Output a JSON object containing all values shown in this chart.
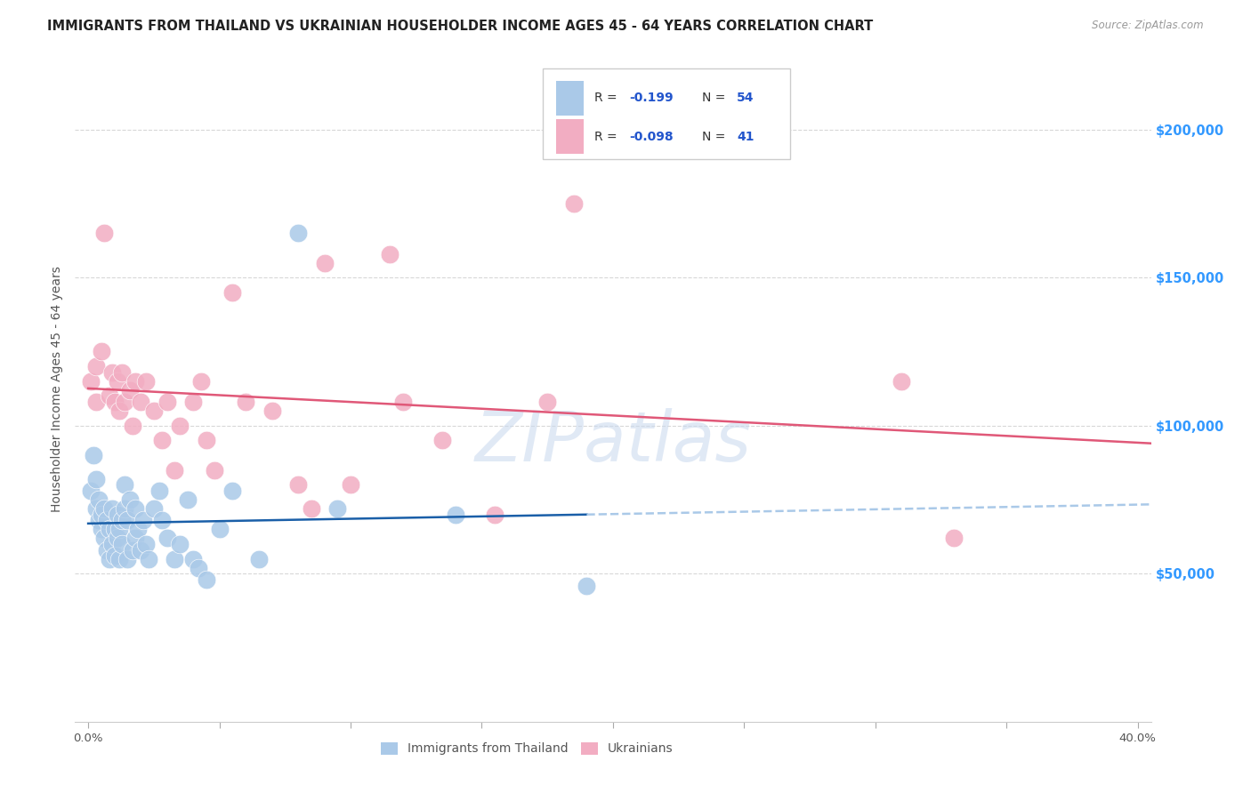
{
  "title": "IMMIGRANTS FROM THAILAND VS UKRAINIAN HOUSEHOLDER INCOME AGES 45 - 64 YEARS CORRELATION CHART",
  "source": "Source: ZipAtlas.com",
  "ylabel": "Householder Income Ages 45 - 64 years",
  "xlabel_ticks": [
    "0.0%",
    "",
    "",
    "",
    "",
    "",
    "",
    "",
    "40.0%"
  ],
  "xlabel_tick_vals": [
    0.0,
    0.05,
    0.1,
    0.15,
    0.2,
    0.25,
    0.3,
    0.35,
    0.4
  ],
  "ytick_labels": [
    "$50,000",
    "$100,000",
    "$150,000",
    "$200,000"
  ],
  "ytick_vals": [
    50000,
    100000,
    150000,
    200000
  ],
  "xlim": [
    -0.005,
    0.405
  ],
  "ylim": [
    0,
    225000
  ],
  "legend_label_blue": "Immigrants from Thailand",
  "legend_label_pink": "Ukrainians",
  "r_blue": "-0.199",
  "n_blue": "54",
  "r_pink": "-0.098",
  "n_pink": "41",
  "blue_color": "#aac9e8",
  "pink_color": "#f2adc2",
  "blue_line_color": "#1a5fa8",
  "pink_line_color": "#e05878",
  "watermark": "ZIPatlas",
  "thailand_x": [
    0.001,
    0.002,
    0.003,
    0.003,
    0.004,
    0.004,
    0.005,
    0.005,
    0.006,
    0.006,
    0.007,
    0.007,
    0.008,
    0.008,
    0.009,
    0.009,
    0.01,
    0.01,
    0.011,
    0.011,
    0.012,
    0.012,
    0.013,
    0.013,
    0.014,
    0.014,
    0.015,
    0.015,
    0.016,
    0.017,
    0.018,
    0.018,
    0.019,
    0.02,
    0.021,
    0.022,
    0.023,
    0.025,
    0.027,
    0.028,
    0.03,
    0.033,
    0.035,
    0.038,
    0.04,
    0.042,
    0.045,
    0.05,
    0.055,
    0.065,
    0.08,
    0.095,
    0.14,
    0.19
  ],
  "thailand_y": [
    78000,
    90000,
    72000,
    82000,
    68000,
    75000,
    65000,
    70000,
    62000,
    72000,
    58000,
    68000,
    55000,
    65000,
    60000,
    72000,
    56000,
    65000,
    62000,
    70000,
    55000,
    65000,
    60000,
    68000,
    72000,
    80000,
    55000,
    68000,
    75000,
    58000,
    62000,
    72000,
    65000,
    58000,
    68000,
    60000,
    55000,
    72000,
    78000,
    68000,
    62000,
    55000,
    60000,
    75000,
    55000,
    52000,
    48000,
    65000,
    78000,
    55000,
    165000,
    72000,
    70000,
    46000
  ],
  "ukraine_x": [
    0.001,
    0.003,
    0.003,
    0.005,
    0.006,
    0.008,
    0.009,
    0.01,
    0.011,
    0.012,
    0.013,
    0.014,
    0.016,
    0.017,
    0.018,
    0.02,
    0.022,
    0.025,
    0.028,
    0.03,
    0.033,
    0.035,
    0.04,
    0.043,
    0.045,
    0.048,
    0.055,
    0.06,
    0.07,
    0.08,
    0.085,
    0.09,
    0.1,
    0.115,
    0.12,
    0.135,
    0.155,
    0.175,
    0.185,
    0.31,
    0.33
  ],
  "ukraine_y": [
    115000,
    120000,
    108000,
    125000,
    165000,
    110000,
    118000,
    108000,
    115000,
    105000,
    118000,
    108000,
    112000,
    100000,
    115000,
    108000,
    115000,
    105000,
    95000,
    108000,
    85000,
    100000,
    108000,
    115000,
    95000,
    85000,
    145000,
    108000,
    105000,
    80000,
    72000,
    155000,
    80000,
    158000,
    108000,
    95000,
    70000,
    108000,
    175000,
    115000,
    62000
  ],
  "dashed_line_color": "#aac9e8",
  "title_fontsize": 10.5,
  "axis_label_fontsize": 10,
  "tick_fontsize": 9.5,
  "legend_fontsize": 10,
  "grid_color": "#d8d8d8",
  "background_color": "#ffffff"
}
